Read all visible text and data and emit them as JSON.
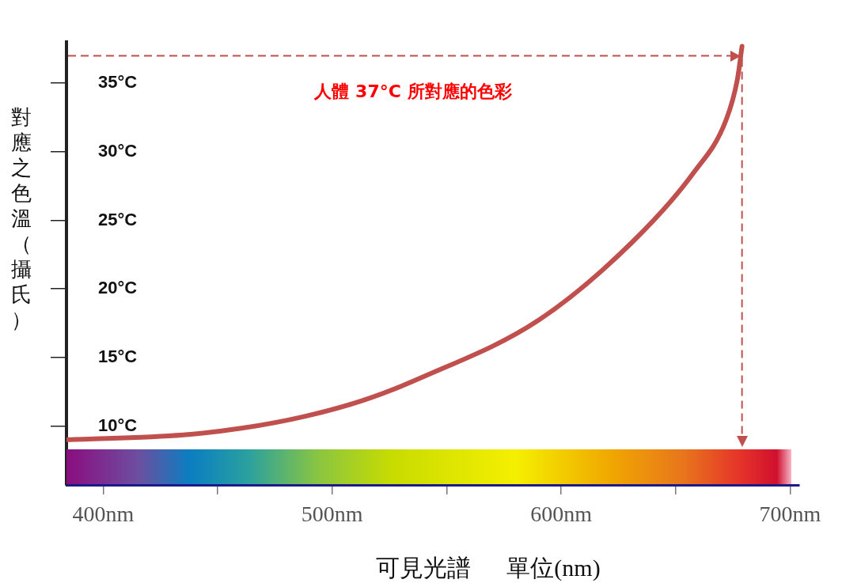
{
  "chart_data": {
    "type": "line",
    "xlabel": "可見光譜      單位(nm)",
    "ylabel": "對應之色溫（攝氏）",
    "annotations": [
      "人體 37°C 所對應的色彩"
    ],
    "ref_lines": [
      {
        "axis": "y",
        "value": 37,
        "color": "#c0504d",
        "line_style": "dashed"
      },
      {
        "axis": "x",
        "value": 679,
        "color": "#c0504d",
        "line_style": "dashed"
      }
    ],
    "x": [
      384.4,
      435,
      461,
      488,
      514,
      540,
      590,
      631,
      658,
      672,
      677,
      679
    ],
    "series": [
      {
        "color": "#c0504d",
        "values": [
          9.0,
          9.35,
          9.85,
          10.7,
          11.9,
          13.6,
          17.7,
          23.4,
          28.5,
          32.3,
          35.3,
          37.7
        ]
      }
    ],
    "xlim": [
      384,
      704
    ],
    "xticks": [
      {
        "value": 400,
        "label": "400nm"
      },
      {
        "value": 450,
        "label": null
      },
      {
        "value": 500,
        "label": "500nm"
      },
      {
        "value": 550,
        "label": null
      },
      {
        "value": 600,
        "label": "600nm"
      },
      {
        "value": 650,
        "label": null
      },
      {
        "value": 700,
        "label": "700nm"
      }
    ],
    "ylim": [
      5.7,
      38
    ],
    "yticks": [
      {
        "value": 10,
        "label": "10°C"
      },
      {
        "value": 15,
        "label": "15°C"
      },
      {
        "value": 20,
        "label": "20°C"
      },
      {
        "value": 25,
        "label": "25°C"
      },
      {
        "value": 30,
        "label": "30°C"
      },
      {
        "value": 35,
        "label": "35°C"
      }
    ],
    "marker": "none",
    "line_style": "solid"
  }
}
